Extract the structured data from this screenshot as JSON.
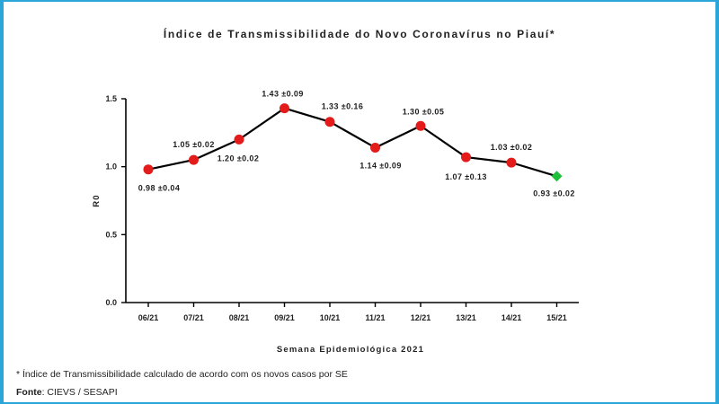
{
  "chart_data": {
    "type": "line",
    "title": "Índice de Transmissibilidade do Novo Coronavírus no Piauí*",
    "xlabel": "Semana Epidemiológica 2021",
    "ylabel": "R0",
    "categories": [
      "06/21",
      "07/21",
      "08/21",
      "09/21",
      "10/21",
      "11/21",
      "12/21",
      "13/21",
      "14/21",
      "15/21"
    ],
    "series": [
      {
        "values": [
          0.98,
          1.05,
          1.2,
          1.43,
          1.33,
          1.14,
          1.3,
          1.07,
          1.03,
          0.93
        ],
        "labels": [
          "0.98 ±0.04",
          "1.05 ±0.02",
          "1.20 ±0.02",
          "1.43 ±0.09",
          "1.33 ±0.16",
          "1.14 ±0.09",
          "1.30 ±0.05",
          "1.07 ±0.13",
          "1.03 ±0.02",
          "0.93 ±0.02"
        ],
        "marker_colors": [
          "#e31b1b",
          "#e31b1b",
          "#e31b1b",
          "#e31b1b",
          "#e31b1b",
          "#e31b1b",
          "#e31b1b",
          "#e31b1b",
          "#e31b1b",
          "#1fbf3a"
        ],
        "marker_shapes": [
          "circle",
          "circle",
          "circle",
          "circle",
          "circle",
          "circle",
          "circle",
          "circle",
          "circle",
          "diamond"
        ]
      }
    ],
    "yticks": [
      "0.0",
      "0.5",
      "1.0",
      "1.5"
    ],
    "ylim": [
      0,
      1.5
    ],
    "grid": false,
    "line_color": "#000000"
  },
  "footnote": "* Índice de Transmissibilidade calculado de acordo com os novos casos por SE",
  "source": {
    "label": "Fonte",
    "text": ": CIEVS / SESAPI"
  },
  "frame_color": "#2aa7d8"
}
